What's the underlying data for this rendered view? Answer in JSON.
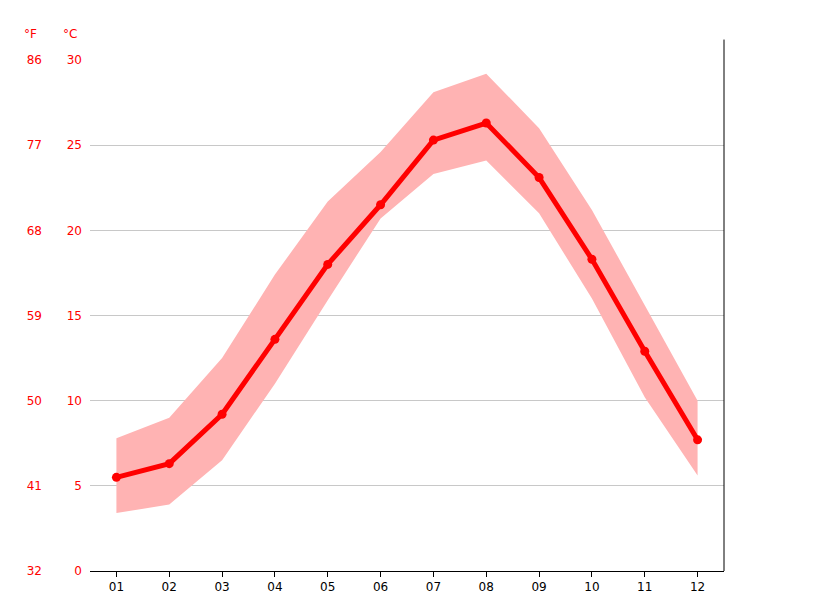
{
  "chart_data": {
    "type": "line",
    "categories": [
      "01",
      "02",
      "03",
      "04",
      "05",
      "06",
      "07",
      "08",
      "09",
      "10",
      "11",
      "12"
    ],
    "values": [
      5.5,
      6.3,
      9.2,
      13.6,
      18.0,
      21.5,
      25.3,
      26.3,
      23.1,
      18.3,
      12.9,
      7.7
    ],
    "band_low": [
      3.4,
      3.9,
      6.5,
      11.0,
      15.9,
      20.7,
      23.3,
      24.1,
      21.0,
      16.0,
      10.2,
      5.6
    ],
    "band_high": [
      7.8,
      9.0,
      12.5,
      17.4,
      21.7,
      24.6,
      28.1,
      29.2,
      26.0,
      21.2,
      15.6,
      10.0
    ],
    "color": "#ff0000",
    "band_color": "#ffb3b3",
    "marker": "circle",
    "y_label": "°C",
    "y2_label": "°F",
    "ylim": [
      0,
      30
    ],
    "yticks": [
      0,
      5,
      10,
      15,
      20,
      25,
      30
    ],
    "y2lim": [
      32,
      86
    ],
    "y2ticks": [
      32,
      41,
      50,
      59,
      68,
      77,
      86
    ],
    "grid": true,
    "legend": false
  }
}
